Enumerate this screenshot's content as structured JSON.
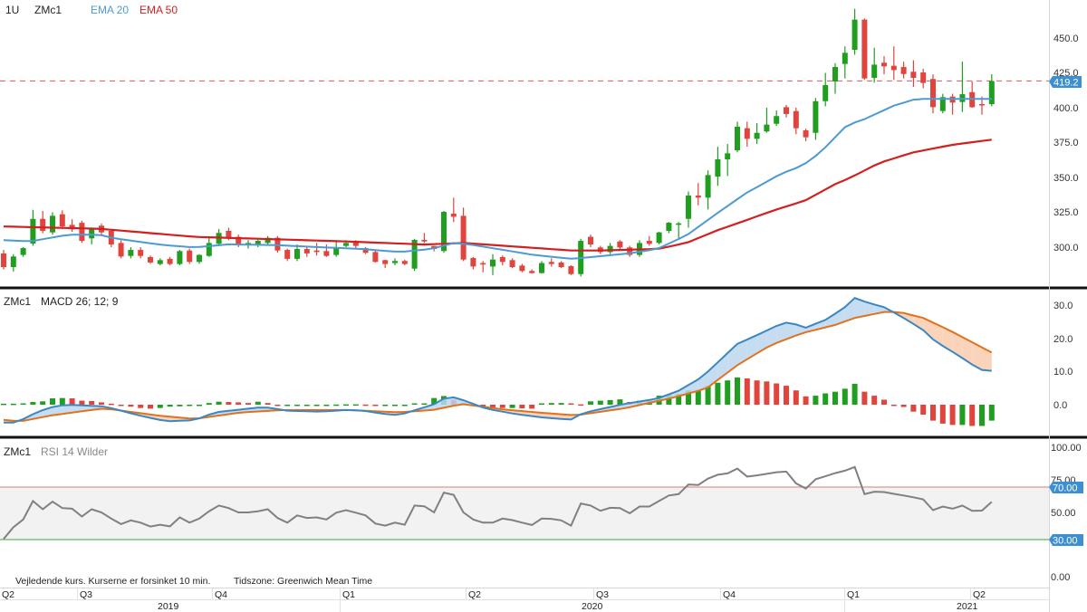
{
  "header": {
    "interval": "1U",
    "symbol": "ZMc1",
    "ema20_label": "EMA 20",
    "ema50_label": "EMA 50"
  },
  "macd_header": {
    "symbol": "ZMc1",
    "label": "MACD 26; 12; 9"
  },
  "rsi_header": {
    "symbol": "ZMc1",
    "label": "RSI 14 Wilder"
  },
  "footer": {
    "note": "Vejledende kurs. Kurserne er forsinket 10 min.",
    "timezone": "Tidszone: Greenwich Mean Time"
  },
  "price_axis": [
    "450.0",
    "425.0",
    "400.0",
    "375.0",
    "350.0",
    "325.0",
    "300.0"
  ],
  "macd_axis": [
    "30.0",
    "20.0",
    "10.0",
    "0.0"
  ],
  "rsi_axis": [
    "100.00",
    "75.00",
    "50.00",
    "0.00"
  ],
  "last_price_label": "419.2",
  "rsi_upper_label": "70.00",
  "rsi_lower_label": "30.00",
  "x_axis": {
    "quarters": [
      "Q2",
      "Q3",
      "Q4",
      "Q1",
      "Q2",
      "Q3",
      "Q4",
      "Q1",
      "Q2"
    ],
    "years": [
      "2019",
      "2020",
      "2021"
    ]
  },
  "colors": {
    "up": "#1f9e1f",
    "down": "#e0443c",
    "ema20": "#4b9bd2",
    "ema50": "#d41f1f",
    "macd": "#3c86c2",
    "signal": "#e0721f",
    "rsi": "#808080"
  },
  "chart_data": {
    "type": "candlestick",
    "symbol": "ZMc1",
    "interval": "weekly",
    "price_ticks": [
      450,
      425,
      400,
      375,
      350,
      325,
      300
    ],
    "last_price": 419.2,
    "candles_ohlc": [
      [
        295.5,
        298,
        284,
        285.7
      ],
      [
        285.7,
        295,
        282.5,
        293.3
      ],
      [
        294.4,
        300,
        293,
        299.3
      ],
      [
        302.6,
        326.8,
        301,
        320.3
      ],
      [
        320.3,
        326,
        310,
        311.7
      ],
      [
        310.6,
        325,
        309,
        322.5
      ],
      [
        323.6,
        326.4,
        313,
        314.9
      ],
      [
        316,
        320,
        311,
        312.8
      ],
      [
        317.5,
        319,
        303,
        304.5
      ],
      [
        306.3,
        314,
        302,
        312.8
      ],
      [
        315.4,
        317,
        309,
        310.6
      ],
      [
        311.7,
        313,
        300,
        301.9
      ],
      [
        303,
        305,
        292,
        293.3
      ],
      [
        293.7,
        300,
        292,
        298
      ],
      [
        298,
        300,
        292,
        293.7
      ],
      [
        292.9,
        294,
        288,
        289
      ],
      [
        287.9,
        292,
        287,
        290.7
      ],
      [
        291.6,
        293,
        287,
        287.9
      ],
      [
        287.9,
        298,
        287,
        297.2
      ],
      [
        297.6,
        299,
        288,
        289.4
      ],
      [
        289.4,
        295,
        288,
        294.4
      ],
      [
        293.7,
        307,
        293,
        303
      ],
      [
        302.4,
        313,
        302,
        310.2
      ],
      [
        311.7,
        314,
        305,
        306.3
      ],
      [
        307.4,
        309,
        300,
        301.9
      ],
      [
        301.5,
        305,
        299,
        303
      ],
      [
        301.5,
        306,
        300,
        304.5
      ],
      [
        303,
        308,
        301,
        306.7
      ],
      [
        306.7,
        308,
        296,
        297.6
      ],
      [
        298,
        299,
        290,
        291.6
      ],
      [
        291.6,
        302,
        290,
        298.7
      ],
      [
        298.7,
        300,
        293,
        295.5
      ],
      [
        297.6,
        303,
        294,
        296.5
      ],
      [
        297.2,
        302,
        293,
        293.7
      ],
      [
        294.4,
        305,
        293,
        299.3
      ],
      [
        300.9,
        305,
        300,
        303
      ],
      [
        304.1,
        305,
        299,
        300.9
      ],
      [
        299.3,
        300,
        295,
        295.9
      ],
      [
        296.5,
        298,
        289,
        289.4
      ],
      [
        290.7,
        291,
        285,
        287.9
      ],
      [
        288.6,
        292,
        287,
        290.1
      ],
      [
        290.1,
        291,
        287,
        287.9
      ],
      [
        284.6,
        306,
        283,
        305.2
      ],
      [
        305.2,
        310.2,
        303,
        304.1
      ],
      [
        300.9,
        301,
        297,
        298.7
      ],
      [
        297.2,
        326,
        296,
        325.3
      ],
      [
        324,
        335.5,
        318,
        321.8
      ],
      [
        322.5,
        328.4,
        290,
        291.1
      ],
      [
        292.2,
        293,
        284,
        286.1
      ],
      [
        288.6,
        290,
        282,
        287.5
      ],
      [
        286.1,
        295,
        280,
        291.1
      ],
      [
        292.9,
        294,
        287,
        289.4
      ],
      [
        290.7,
        292,
        285,
        285.7
      ],
      [
        286.8,
        288,
        282,
        282.9
      ],
      [
        282.9,
        284,
        281,
        281.4
      ],
      [
        281.4,
        290,
        281,
        288.6
      ],
      [
        289.4,
        292,
        286,
        287.9
      ],
      [
        289,
        290,
        285,
        285.7
      ],
      [
        286.4,
        287,
        280,
        280.7
      ],
      [
        280.7,
        306,
        279,
        304.5
      ],
      [
        307.4,
        309,
        300,
        301.9
      ],
      [
        299.8,
        301,
        295,
        296.5
      ],
      [
        296.5,
        303,
        295,
        300.9
      ],
      [
        304.1,
        305,
        298,
        299.8
      ],
      [
        299.8,
        301,
        293,
        294.4
      ],
      [
        294.4,
        305,
        293,
        303
      ],
      [
        304.5,
        308,
        301,
        302.4
      ],
      [
        303,
        311,
        302,
        310.6
      ],
      [
        311.7,
        318,
        310,
        317.5
      ],
      [
        316,
        318,
        306,
        317.1
      ],
      [
        320.3,
        340,
        314,
        337
      ],
      [
        337,
        346,
        330,
        335.5
      ],
      [
        335.5,
        355,
        327,
        351.7
      ],
      [
        350.6,
        372,
        344,
        363
      ],
      [
        363,
        374,
        351,
        367.3
      ],
      [
        369.5,
        390,
        368,
        386.4
      ],
      [
        385.3,
        390,
        372,
        377.7
      ],
      [
        377.7,
        389,
        374,
        382
      ],
      [
        383,
        400,
        382,
        387.9
      ],
      [
        388.5,
        398,
        387,
        394
      ],
      [
        400.4,
        402,
        393,
        395.5
      ],
      [
        397.6,
        400,
        381,
        385.3
      ],
      [
        383.8,
        385,
        376,
        378.8
      ],
      [
        382,
        407,
        377,
        404.7
      ],
      [
        404.7,
        425,
        401,
        416.2
      ],
      [
        418.8,
        432,
        410,
        429.2
      ],
      [
        431.4,
        444,
        421,
        439.4
      ],
      [
        441.5,
        471,
        438,
        463.2
      ],
      [
        463.2,
        464,
        420,
        421
      ],
      [
        421.4,
        443,
        418,
        430.9
      ],
      [
        432.3,
        437,
        424,
        429.7
      ],
      [
        430.1,
        444,
        420,
        427
      ],
      [
        429.2,
        433,
        421,
        424.2
      ],
      [
        425.8,
        434,
        415,
        421.4
      ],
      [
        425.3,
        428,
        414,
        417.8
      ],
      [
        420.6,
        424,
        396,
        400.4
      ],
      [
        397.6,
        410,
        396,
        407.6
      ],
      [
        408,
        410,
        395,
        403.7
      ],
      [
        404.1,
        433,
        397,
        409.7
      ],
      [
        411.2,
        419,
        400,
        400.4
      ],
      [
        402.6,
        408,
        395,
        402.2
      ],
      [
        402.6,
        424,
        401,
        419.2
      ]
    ],
    "ema20_points": [
      [
        -0.4,
        305.2
      ],
      [
        2.7,
        304.1
      ],
      [
        6.6,
        308.9
      ],
      [
        9.8,
        308.9
      ],
      [
        11.3,
        306.3
      ],
      [
        16.4,
        301.5
      ],
      [
        19.5,
        299.8
      ],
      [
        23,
        302
      ],
      [
        27.7,
        301.5
      ],
      [
        32.8,
        299.8
      ],
      [
        36.7,
        298.7
      ],
      [
        40.5,
        296.5
      ],
      [
        43.7,
        298.7
      ],
      [
        46,
        303
      ],
      [
        47.6,
        302
      ],
      [
        54.2,
        294.4
      ],
      [
        58.1,
        291.6
      ],
      [
        63.8,
        295.4
      ],
      [
        66.8,
        298.7
      ],
      [
        69.8,
        308.4
      ],
      [
        72.8,
        323.6
      ],
      [
        75.9,
        338.8
      ],
      [
        79.5,
        352.8
      ],
      [
        81.6,
        358.2
      ],
      [
        83.5,
        368
      ],
      [
        86.2,
        387.5
      ],
      [
        88,
        391.8
      ],
      [
        91,
        401.5
      ],
      [
        93,
        405.8
      ],
      [
        94,
        406.3
      ],
      [
        101,
        406.3
      ]
    ],
    "ema50_points": [
      [
        -0.4,
        314.9
      ],
      [
        6,
        313.8
      ],
      [
        9.8,
        313.2
      ],
      [
        19.5,
        307.4
      ],
      [
        35,
        304.1
      ],
      [
        43,
        301.9
      ],
      [
        47,
        303
      ],
      [
        58,
        297.6
      ],
      [
        61,
        297.6
      ],
      [
        66.8,
        298.7
      ],
      [
        69.8,
        303
      ],
      [
        72.8,
        311.7
      ],
      [
        75.9,
        319.3
      ],
      [
        78.9,
        326.8
      ],
      [
        81.9,
        333.3
      ],
      [
        85,
        345.2
      ],
      [
        86.5,
        349.6
      ],
      [
        89.5,
        360.4
      ],
      [
        93,
        368
      ],
      [
        97,
        373.4
      ],
      [
        101,
        377.1
      ]
    ],
    "macd_ticks": [
      30,
      20,
      10,
      0
    ],
    "macd_points": [
      [
        -1.5,
        -5.4
      ],
      [
        1.4,
        -5.4
      ],
      [
        2.4,
        -3.6
      ],
      [
        4.6,
        -0.9
      ],
      [
        6.4,
        0
      ],
      [
        10.3,
        -0.5
      ],
      [
        13.8,
        -3.2
      ],
      [
        16.6,
        -5
      ],
      [
        19.5,
        -4.7
      ],
      [
        21.6,
        -2.3
      ],
      [
        24.4,
        -1.4
      ],
      [
        26.6,
        -0.7
      ],
      [
        29,
        -1.8
      ],
      [
        32.2,
        -2.1
      ],
      [
        35.1,
        -1.6
      ],
      [
        36.8,
        -1.8
      ],
      [
        38.6,
        -2.7
      ],
      [
        40.4,
        -3.2
      ],
      [
        42.1,
        -1.6
      ],
      [
        43.9,
        0
      ],
      [
        45.4,
        2.5
      ],
      [
        46.4,
        2
      ],
      [
        49.3,
        -1.2
      ],
      [
        52.1,
        -2.7
      ],
      [
        55.2,
        -3.9
      ],
      [
        58.1,
        -4.5
      ],
      [
        59.2,
        -2.5
      ],
      [
        63.4,
        0.2
      ],
      [
        66.8,
        1.8
      ],
      [
        69,
        4.2
      ],
      [
        71.4,
        8.3
      ],
      [
        73.7,
        14.7
      ],
      [
        75,
        18.3
      ],
      [
        76.7,
        20.5
      ],
      [
        79,
        23.7
      ],
      [
        80.2,
        24.9
      ],
      [
        82,
        23.2
      ],
      [
        84,
        25.5
      ],
      [
        85.9,
        29.1
      ],
      [
        87,
        32.1
      ],
      [
        88.3,
        30.7
      ],
      [
        89.9,
        29.5
      ],
      [
        91.6,
        26.8
      ],
      [
        93.9,
        22.7
      ],
      [
        95.2,
        19.1
      ],
      [
        97.5,
        15
      ],
      [
        99.8,
        10.5
      ],
      [
        101,
        10.2
      ]
    ],
    "signal_points": [
      [
        -0.4,
        -4.5
      ],
      [
        1.8,
        -5
      ],
      [
        4.9,
        -3.2
      ],
      [
        10.3,
        -1.1
      ],
      [
        15.6,
        -3.2
      ],
      [
        19.5,
        -4.3
      ],
      [
        24.4,
        -2.3
      ],
      [
        28.7,
        -1.6
      ],
      [
        35.1,
        -1.6
      ],
      [
        40.4,
        -2.3
      ],
      [
        43.9,
        -1.6
      ],
      [
        46.8,
        0.2
      ],
      [
        51,
        -1.4
      ],
      [
        55.2,
        -2.5
      ],
      [
        58.5,
        -3.2
      ],
      [
        63.5,
        -1.1
      ],
      [
        68.4,
        2.1
      ],
      [
        71.8,
        4.8
      ],
      [
        75.1,
        12.1
      ],
      [
        78.4,
        17.9
      ],
      [
        81.7,
        21.6
      ],
      [
        85,
        24
      ],
      [
        87,
        26.1
      ],
      [
        90,
        27.9
      ],
      [
        91.6,
        27.9
      ],
      [
        94,
        26.1
      ],
      [
        96.6,
        22.5
      ],
      [
        101,
        15.7
      ]
    ],
    "histogram": [
      0.3,
      0.3,
      0.4,
      0.8,
      1.0,
      1.9,
      2.0,
      1.9,
      1.2,
      1.1,
      0.7,
      0.3,
      -0.3,
      -0.6,
      -1.0,
      -1.2,
      -1.0,
      -0.6,
      -0.5,
      -0.3,
      -0.2,
      0.5,
      0.9,
      0.8,
      0.7,
      0.5,
      0.9,
      0.5,
      0,
      0,
      0,
      0,
      0,
      0,
      0.05,
      0.1,
      0.1,
      0.05,
      -0.2,
      -0.2,
      -0.2,
      0,
      0.4,
      0.4,
      2.0,
      2.6,
      1.5,
      0.5,
      -0.4,
      -0.6,
      -0.8,
      -1.0,
      -1.0,
      -1.1,
      -1.2,
      0.4,
      0.5,
      0.5,
      0.4,
      0.1,
      1.0,
      1.2,
      1.4,
      1.6,
      0.8,
      1.2,
      1.3,
      2.7,
      3.0,
      3.2,
      4.3,
      4.5,
      5.7,
      6.6,
      7.3,
      8.2,
      7.9,
      7.3,
      7.0,
      6.4,
      5.7,
      4.3,
      2.5,
      2.7,
      3.4,
      3.9,
      4.8,
      6.3,
      3.9,
      2.7,
      1.5,
      0,
      -0.7,
      -2.1,
      -3.0,
      -4.8,
      -5.7,
      -6.1,
      -6.1,
      -6.4,
      -6.4,
      -4.8
    ],
    "rsi_ticks": [
      100,
      75,
      50,
      0
    ],
    "rsi_bands": [
      70,
      30
    ],
    "rsi": [
      30.5,
      39.4,
      45.3,
      59.4,
      53.1,
      58.9,
      54,
      53.5,
      47.6,
      53.1,
      50.7,
      46,
      41.8,
      44.6,
      42.9,
      39.9,
      41.3,
      40.1,
      46.9,
      42.9,
      46,
      51.6,
      55.9,
      54,
      50.7,
      50.7,
      51.6,
      53.1,
      46.5,
      42.9,
      48.4,
      46.5,
      46.9,
      45.3,
      50.5,
      52.4,
      50.5,
      48.4,
      42.2,
      40.6,
      42.9,
      41.3,
      55.9,
      55.4,
      50.7,
      65.8,
      64.1,
      50.7,
      45.3,
      42.9,
      42.9,
      46,
      44.8,
      42.9,
      41.1,
      46,
      45.8,
      44.6,
      40.6,
      57.5,
      55.9,
      51.9,
      54.2,
      54,
      50,
      55.2,
      55.2,
      59.4,
      63.6,
      64.6,
      71.9,
      71.6,
      76.4,
      79.4,
      80.4,
      84.1,
      78,
      78.9,
      80.1,
      81.3,
      81.8,
      72.8,
      68.8,
      75.9,
      78.2,
      80.6,
      82.5,
      85.3,
      64.6,
      66.5,
      66.2,
      64.8,
      63.6,
      62.2,
      60.6,
      52.4,
      55.2,
      53.5,
      55.9,
      51.9,
      52.1,
      58.7
    ]
  }
}
